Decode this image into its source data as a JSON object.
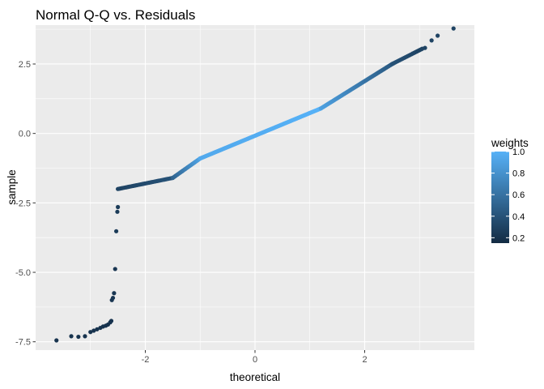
{
  "chart_data": {
    "type": "scatter",
    "title": "Normal Q-Q vs. Residuals",
    "xlabel": "theoretical",
    "ylabel": "sample",
    "xlim": [
      -4.0,
      4.0
    ],
    "ylim": [
      -7.8,
      3.9
    ],
    "x_ticks": [
      -2,
      0,
      2
    ],
    "x_tick_labels": [
      "-2",
      "0",
      "2"
    ],
    "y_ticks": [
      -7.5,
      -5.0,
      -2.5,
      0.0,
      2.5
    ],
    "y_tick_labels": [
      "-7.5",
      "-5.0",
      "-2.5",
      "0.0",
      "2.5"
    ],
    "grid": true,
    "legend": {
      "title": "weights",
      "position": "right",
      "type": "colorbar",
      "range": [
        0.15,
        1.0
      ],
      "ticks": [
        0.2,
        0.4,
        0.6,
        0.8,
        1.0
      ],
      "tick_labels": [
        "0.2",
        "0.4",
        "0.6",
        "0.8",
        "1.0"
      ],
      "low_color": "#132B43",
      "high_color": "#56B1F7"
    },
    "colors": {
      "panel_background": "#EBEBEB",
      "grid_major": "#FFFFFF",
      "low": "#132B43",
      "high": "#56B1F7"
    },
    "segments": [
      {
        "x0": -2.5,
        "x1": -1.5,
        "y0": -2.0,
        "y1": -1.6,
        "w0": 0.3,
        "w1": 0.4,
        "n": 40
      },
      {
        "x0": -1.5,
        "x1": -1.0,
        "y0": -1.6,
        "y1": -0.9,
        "w0": 0.5,
        "w1": 0.9,
        "n": 30
      },
      {
        "x0": -1.0,
        "x1": 1.2,
        "y0": -0.9,
        "y1": 0.9,
        "w0": 0.95,
        "w1": 1.0,
        "n": 140
      },
      {
        "x0": 1.2,
        "x1": 2.5,
        "y0": 0.9,
        "y1": 2.5,
        "w0": 0.9,
        "w1": 0.45,
        "n": 80
      },
      {
        "x0": 2.5,
        "x1": 3.05,
        "y0": 2.5,
        "y1": 3.05,
        "w0": 0.4,
        "w1": 0.3,
        "n": 26
      }
    ],
    "points": [
      {
        "x": -3.62,
        "y": -7.45,
        "w": 0.2
      },
      {
        "x": -3.35,
        "y": -7.3,
        "w": 0.2
      },
      {
        "x": -3.22,
        "y": -7.32,
        "w": 0.2
      },
      {
        "x": -3.1,
        "y": -7.3,
        "w": 0.2
      },
      {
        "x": -3.0,
        "y": -7.15,
        "w": 0.2
      },
      {
        "x": -2.94,
        "y": -7.1,
        "w": 0.2
      },
      {
        "x": -2.88,
        "y": -7.05,
        "w": 0.2
      },
      {
        "x": -2.82,
        "y": -7.0,
        "w": 0.2
      },
      {
        "x": -2.77,
        "y": -6.95,
        "w": 0.2
      },
      {
        "x": -2.72,
        "y": -6.92,
        "w": 0.2
      },
      {
        "x": -2.68,
        "y": -6.88,
        "w": 0.2
      },
      {
        "x": -2.64,
        "y": -6.8,
        "w": 0.2
      },
      {
        "x": -2.62,
        "y": -6.75,
        "w": 0.2
      },
      {
        "x": -2.61,
        "y": -6.0,
        "w": 0.22
      },
      {
        "x": -2.59,
        "y": -5.92,
        "w": 0.22
      },
      {
        "x": -2.57,
        "y": -5.75,
        "w": 0.22
      },
      {
        "x": -2.55,
        "y": -4.88,
        "w": 0.22
      },
      {
        "x": -2.53,
        "y": -3.52,
        "w": 0.25
      },
      {
        "x": -2.51,
        "y": -2.82,
        "w": 0.25
      },
      {
        "x": -2.5,
        "y": -2.65,
        "w": 0.25
      },
      {
        "x": 3.1,
        "y": 3.08,
        "w": 0.3
      },
      {
        "x": 3.22,
        "y": 3.35,
        "w": 0.3
      },
      {
        "x": 3.33,
        "y": 3.52,
        "w": 0.3
      },
      {
        "x": 3.62,
        "y": 3.78,
        "w": 0.3
      }
    ]
  }
}
